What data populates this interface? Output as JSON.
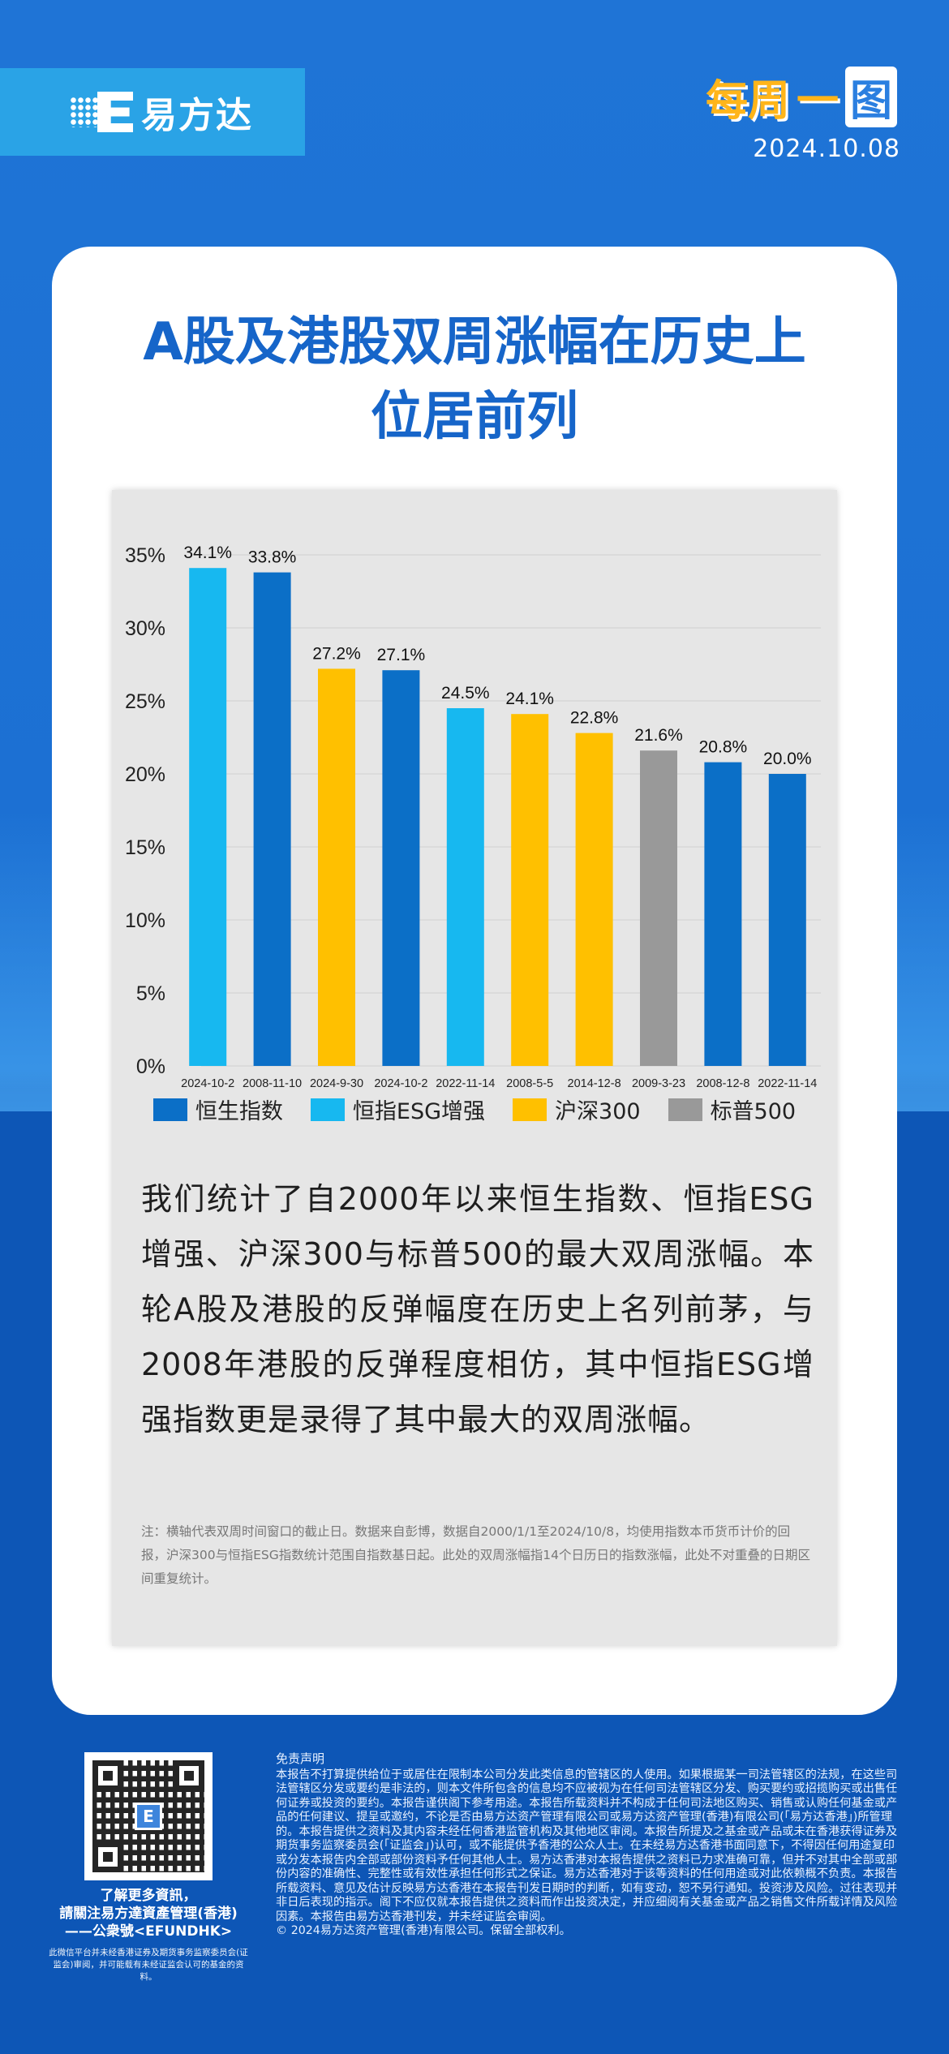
{
  "header": {
    "logo_text": "易方达",
    "brand_title_a": "每周",
    "brand_title_b": "一",
    "brand_title_c": "图",
    "date": "2024.10.08"
  },
  "headline": {
    "line1": "A股及港股双周涨幅在历史上",
    "line2": "位居前列"
  },
  "colors": {
    "恒生指数": "#0b6fc7",
    "恒指ESG增强": "#17b8f0",
    "沪深300": "#ffc000",
    "标普500": "#999999"
  },
  "chart_data": {
    "type": "bar",
    "title": "",
    "xlabel": "",
    "ylabel": "",
    "ylim": [
      0,
      35
    ],
    "yticks": [
      "0%",
      "5%",
      "10%",
      "15%",
      "20%",
      "25%",
      "30%",
      "35%"
    ],
    "grid": true,
    "legend_position": "bottom",
    "legend": [
      "恒生指数",
      "恒指ESG增强",
      "沪深300",
      "标普500"
    ],
    "categories": [
      "2024-10-2",
      "2008-11-10",
      "2024-9-30",
      "2024-10-2",
      "2022-11-14",
      "2008-5-5",
      "2014-12-8",
      "2009-3-23",
      "2008-12-8",
      "2022-11-14"
    ],
    "values": [
      34.1,
      33.8,
      27.2,
      27.1,
      24.5,
      24.1,
      22.8,
      21.6,
      20.8,
      20.0
    ],
    "labels": [
      "34.1%",
      "33.8%",
      "27.2%",
      "27.1%",
      "24.5%",
      "24.1%",
      "22.8%",
      "21.6%",
      "20.8%",
      "20.0%"
    ],
    "bar_series": [
      "恒指ESG增强",
      "恒生指数",
      "沪深300",
      "恒生指数",
      "恒指ESG增强",
      "沪深300",
      "沪深300",
      "标普500",
      "恒生指数",
      "恒生指数"
    ]
  },
  "body_text": "我们统计了自2000年以来恒生指数、恒指ESG增强、沪深300与标普500的最大双周涨幅。本轮A股及港股的反弹幅度在历史上名列前茅，与2008年港股的反弹程度相仿，其中恒指ESG增强指数更是录得了其中最大的双周涨幅。",
  "note": "注：横轴代表双周时间窗口的截止日。数据来自彭博，数据自2000/1/1至2024/10/8，均使用指数本币货币计价的回报，沪深300与恒指ESG指数统计范围自指数基日起。此处的双周涨幅指14个日历日的指数涨幅，此处不对重叠的日期区间重复统计。",
  "footer": {
    "follow_line1": "了解更多資訊，",
    "follow_line2": "請關注易方達資產管理(香港)",
    "follow_line3": "——公衆號<EFUNDHK>",
    "small_print": "此微信平台并未经香港证券及期货事务监察委员会(证监会)审阅，并可能载有未经证监会认可的基金的资料。",
    "disclaimer_title": "免责声明",
    "disclaimer_body": "本报告不打算提供给位于或居住在限制本公司分发此类信息的管辖区的人使用。如果根据某一司法管辖区的法规，在这些司法管辖区分发或要约是非法的，则本文件所包含的信息均不应被视为在任何司法管辖区分发、购买要约或招揽购买或出售任何证券或投资的要约。本报告谨供阁下参考用途。本报告所载资料并不构成于任何司法地区购买、销售或认购任何基金或产品的任何建议、提呈或邀约，不论是否由易方达资产管理有限公司或易方达资产管理(香港)有限公司(「易方达香港」)所管理的。本报告提供之资料及其内容未经任何香港监管机构及其他地区审阅。本报告所提及之基金或产品或未在香港获得证券及期货事务监察委员会(「证监会」)认可，或不能提供予香港的公众人士。在未经易方达香港书面同意下，不得因任何用途复印或分发本报告内全部或部份资料予任何其他人士。易方达香港对本报告提供之资料已力求准确可靠，但并不对其中全部或部份内容的准确性、完整性或有效性承担任何形式之保证。易方达香港对于该等资料的任何用途或对此依赖概不负责。本报告所载资料、意见及估计反映易方达香港在本报告刊发日期时的判断，如有变动，恕不另行通知。投资涉及风险。过往表现并非日后表现的指示。阁下不应仅就本报告提供之资料而作出投资决定，并应细阅有关基金或产品之销售文件所载详情及风险因素。本报告由易方达香港刊发，并未经证监会审阅。",
    "copyright": "© 2024易方达资产管理(香港)有限公司。保留全部权利。"
  }
}
